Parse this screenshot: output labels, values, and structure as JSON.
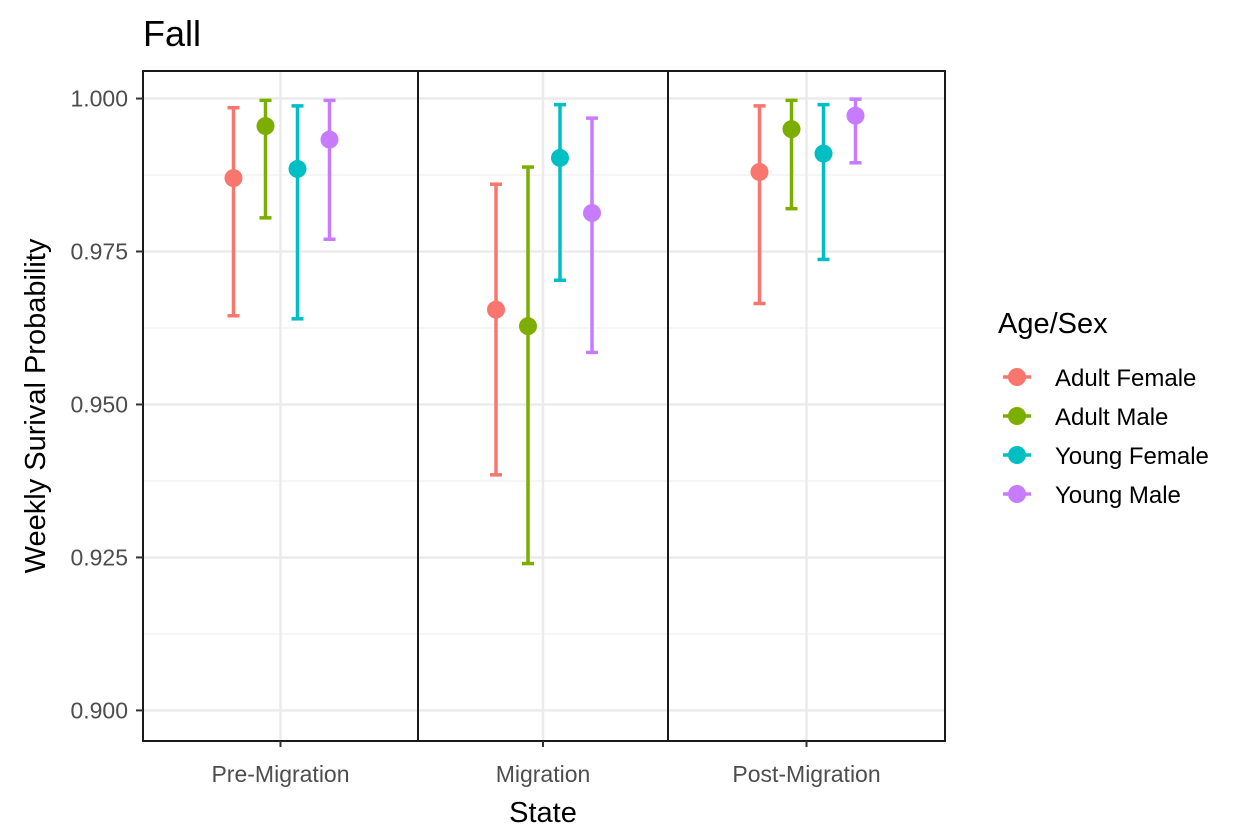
{
  "chart_data": {
    "type": "scatter",
    "title": "Fall",
    "xlabel": "State",
    "ylabel": "Weekly Surival Probability",
    "categories": [
      "Pre-Migration",
      "Migration",
      "Post-Migration"
    ],
    "ylim": [
      0.895,
      1.0045
    ],
    "yticks": [
      "0.900",
      "0.925",
      "0.950",
      "0.975",
      "1.000"
    ],
    "ytick_values": [
      0.9,
      0.925,
      0.95,
      0.975,
      1.0
    ],
    "grid": true,
    "legend": {
      "title": "Age/Sex",
      "placement": "right"
    },
    "series": [
      {
        "name": "Adult Female",
        "color": "#F8766D",
        "values": [
          0.987,
          0.9655,
          0.988
        ],
        "lower": [
          0.9645,
          0.9385,
          0.9665
        ],
        "upper": [
          0.9985,
          0.986,
          0.9988
        ]
      },
      {
        "name": "Adult Male",
        "color": "#7CAE00",
        "values": [
          0.9955,
          0.9628,
          0.995
        ],
        "lower": [
          0.9805,
          0.924,
          0.982
        ],
        "upper": [
          0.9997,
          0.9888,
          0.9997
        ]
      },
      {
        "name": "Young Female",
        "color": "#00BFC4",
        "values": [
          0.9885,
          0.9903,
          0.991
        ],
        "lower": [
          0.964,
          0.9703,
          0.9737
        ],
        "upper": [
          0.9988,
          0.999,
          0.999
        ]
      },
      {
        "name": "Young Male",
        "color": "#C77CFF",
        "values": [
          0.9933,
          0.9813,
          0.9972
        ],
        "lower": [
          0.977,
          0.9585,
          0.9895
        ],
        "upper": [
          0.9997,
          0.9968,
          0.9999
        ]
      }
    ]
  }
}
